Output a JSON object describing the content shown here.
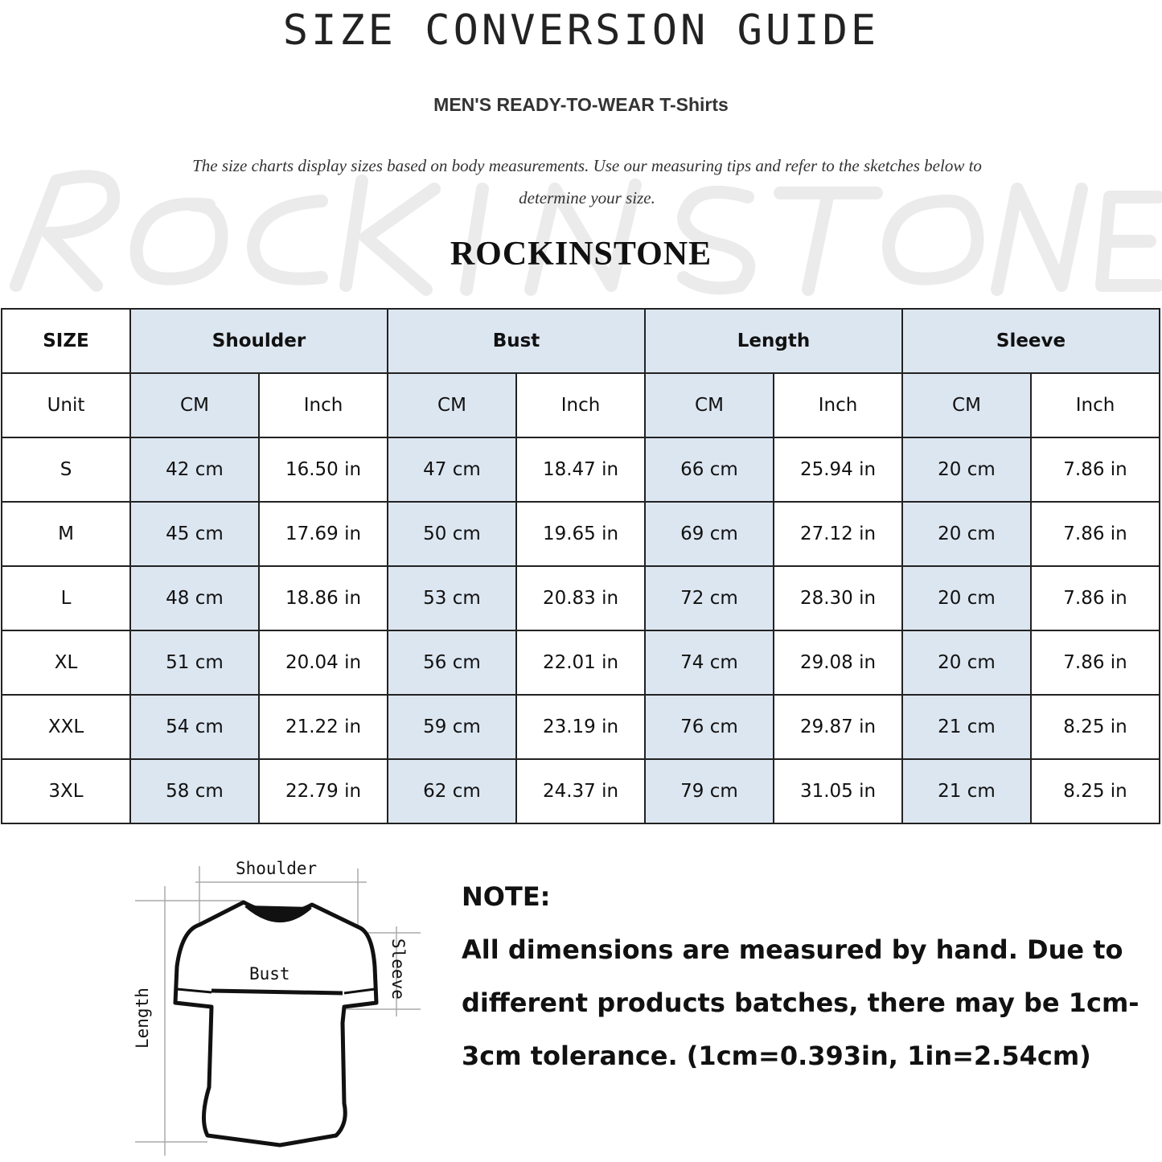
{
  "title": "SIZE CONVERSION GUIDE",
  "subtitle": "MEN'S READY-TO-WEAR T-Shirts",
  "description": "The size charts display sizes based on body measurements. Use our measuring tips and refer to the sketches below to determine your size.",
  "watermark": "ROCKINSTONE",
  "brand": "ROCKINSTONE",
  "colors": {
    "header_fill": "#dce6f1",
    "border": "#222222"
  },
  "table": {
    "size_label": "SIZE",
    "unit_label": "Unit",
    "groups": [
      "Shoulder",
      "Bust",
      "Length",
      "Sleeve"
    ],
    "units": [
      "CM",
      "Inch"
    ],
    "rows": [
      {
        "size": "S",
        "values": [
          "42 cm",
          "16.50 in",
          "47 cm",
          "18.47  in",
          "66 cm",
          "25.94  in",
          "20 cm",
          "7.86  in"
        ]
      },
      {
        "size": "M",
        "values": [
          "45 cm",
          "17.69  in",
          "50 cm",
          "19.65  in",
          "69 cm",
          "27.12  in",
          "20 cm",
          "7.86  in"
        ]
      },
      {
        "size": "L",
        "values": [
          "48 cm",
          "18.86  in",
          "53 cm",
          "20.83  in",
          "72 cm",
          "28.30  in",
          "20 cm",
          "7.86  in"
        ]
      },
      {
        "size": "XL",
        "values": [
          "51 cm",
          "20.04  in",
          "56 cm",
          "22.01  in",
          "74 cm",
          "29.08  in",
          "20 cm",
          "7.86  in"
        ]
      },
      {
        "size": "XXL",
        "values": [
          "54 cm",
          "21.22  in",
          "59 cm",
          "23.19  in",
          "76 cm",
          "29.87  in",
          "21 cm",
          "8.25  in"
        ]
      },
      {
        "size": "3XL",
        "values": [
          "58 cm",
          "22.79  in",
          "62 cm",
          "24.37  in",
          "79 cm",
          "31.05  in",
          "21 cm",
          "8.25  in"
        ]
      }
    ]
  },
  "sketch": {
    "shoulder": "Shoulder",
    "bust": "Bust",
    "sleeve": "Sleeve",
    "length": "Length"
  },
  "note": {
    "heading": "NOTE:",
    "body": "All dimensions are measured by hand. Due to different products batches, there may be 1cm-3cm tolerance. (1cm=0.393in, 1in=2.54cm)"
  }
}
